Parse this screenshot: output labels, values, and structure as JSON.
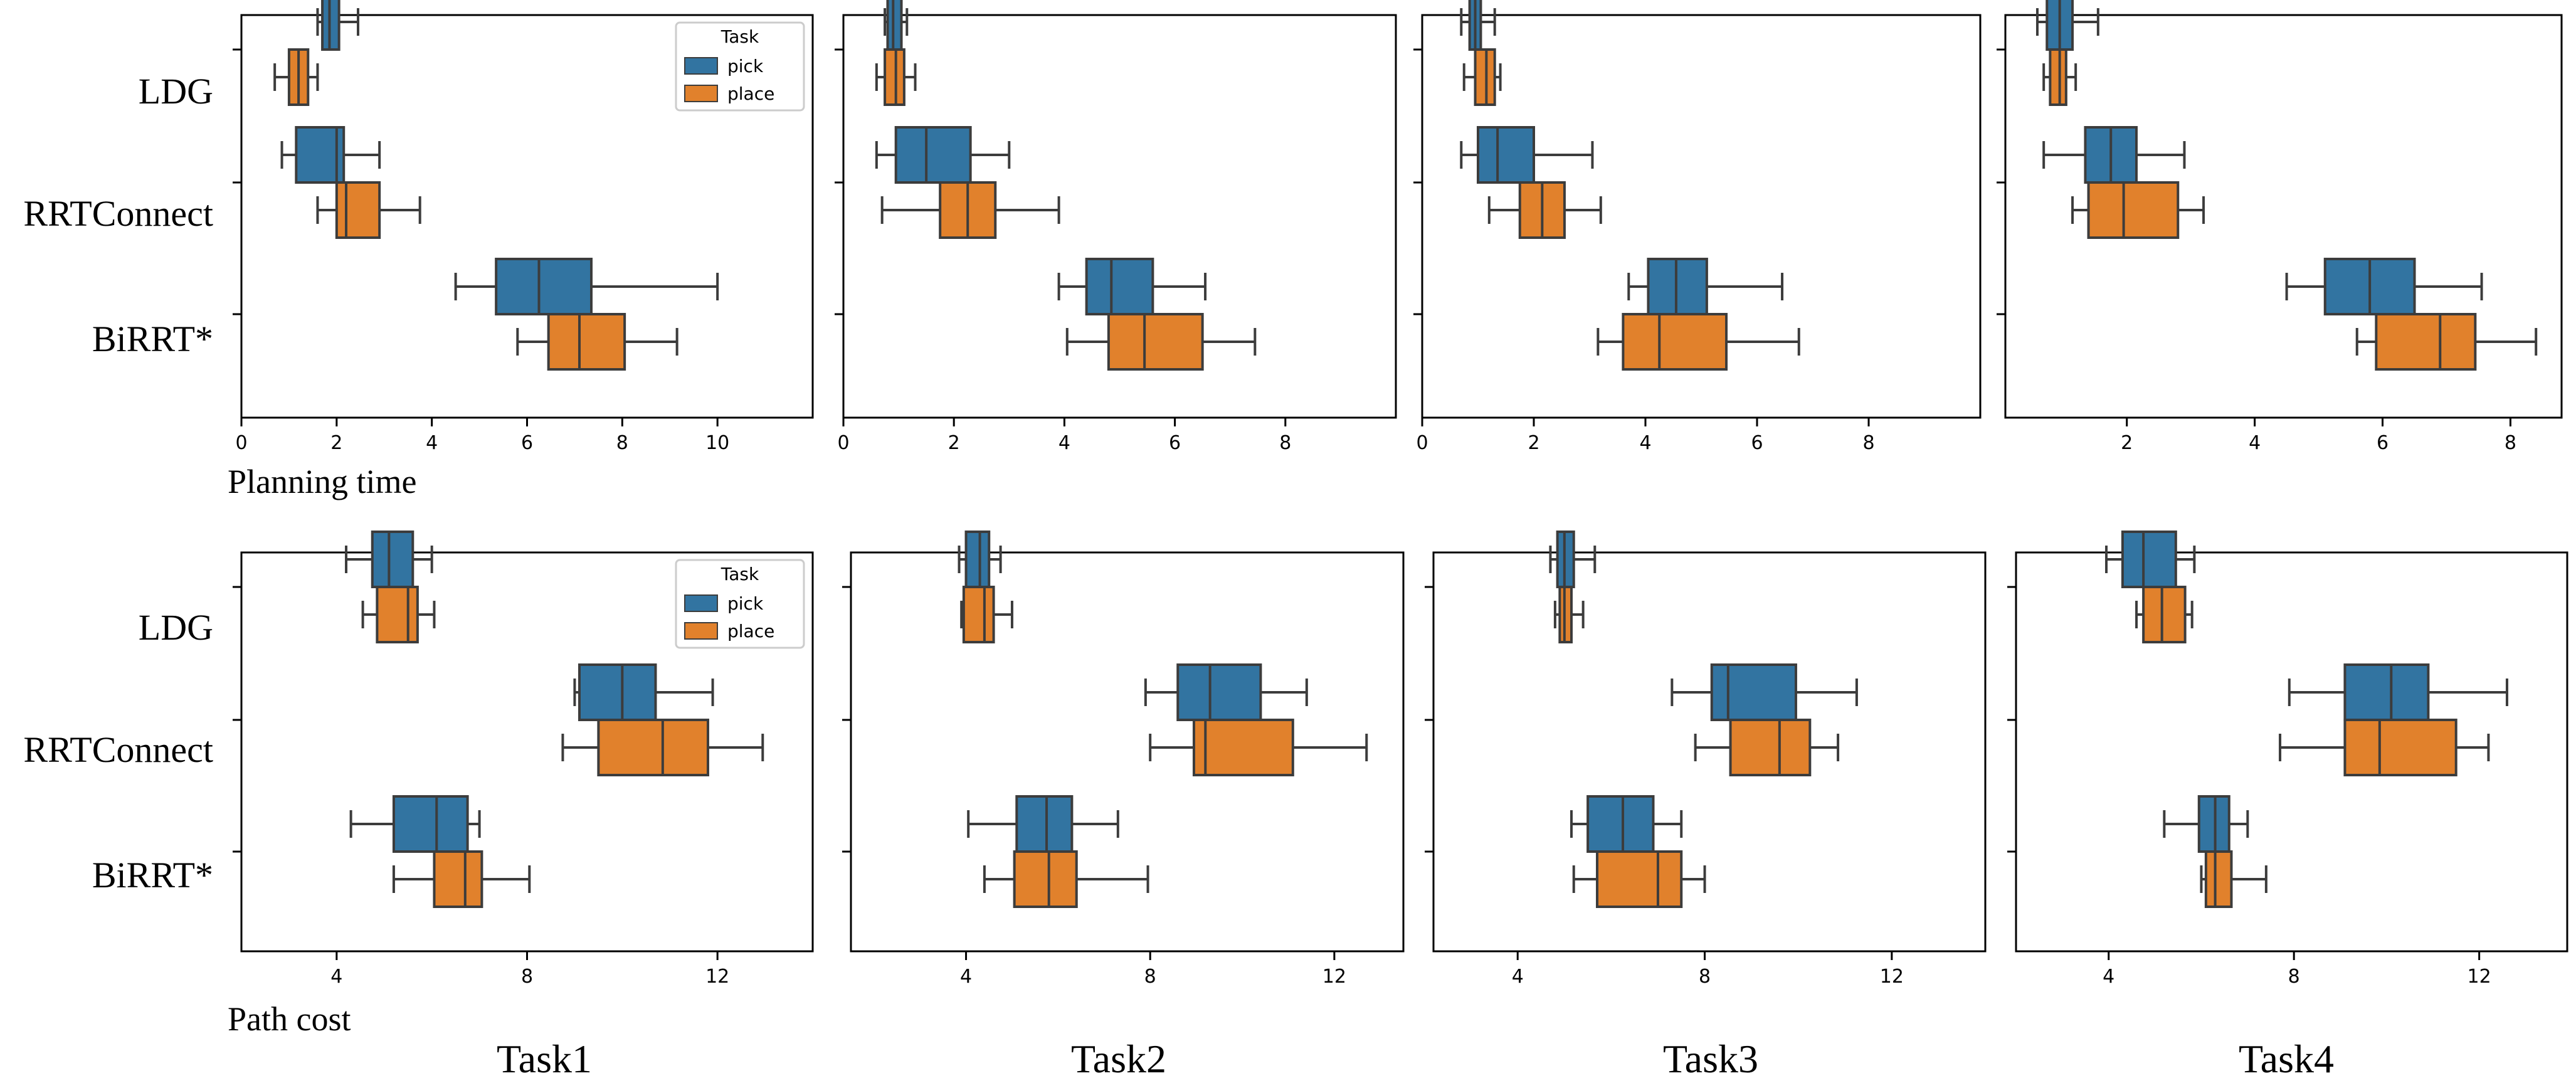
{
  "labels": {
    "methods": [
      "LDG",
      "RRTConnect",
      "BiRRT*"
    ],
    "row_titles": [
      "Planning time",
      "Path cost"
    ],
    "task_titles": [
      "Task1",
      "Task2",
      "Task3",
      "Task4"
    ],
    "legend_title": "Task",
    "legend_items": [
      "pick",
      "place"
    ]
  },
  "colors": {
    "pick": "#3274a1",
    "place": "#e1812c",
    "whisker": "#3c3c3c",
    "frame": "#000000"
  },
  "chart_data": [
    {
      "type": "boxplot",
      "row": 0,
      "task": "Task1",
      "xlim": [
        0,
        12
      ],
      "xticks": [
        0,
        2,
        4,
        6,
        8,
        10
      ],
      "legend": "top-right",
      "methods": [
        "LDG",
        "RRTConnect",
        "BiRRT*"
      ],
      "series": [
        {
          "name": "pick",
          "boxes": [
            {
              "min": 1.6,
              "q1": 1.7,
              "median": 1.85,
              "q3": 2.05,
              "max": 2.45
            },
            {
              "min": 0.85,
              "q1": 1.15,
              "median": 2.0,
              "q3": 2.15,
              "max": 2.9
            },
            {
              "min": 4.5,
              "q1": 5.35,
              "median": 6.25,
              "q3": 7.35,
              "max": 10.0
            }
          ]
        },
        {
          "name": "place",
          "boxes": [
            {
              "min": 0.7,
              "q1": 1.0,
              "median": 1.2,
              "q3": 1.4,
              "max": 1.6
            },
            {
              "min": 1.6,
              "q1": 2.0,
              "median": 2.2,
              "q3": 2.9,
              "max": 3.75
            },
            {
              "min": 5.8,
              "q1": 6.45,
              "median": 7.1,
              "q3": 8.05,
              "max": 9.15
            }
          ]
        }
      ]
    },
    {
      "type": "boxplot",
      "row": 0,
      "task": "Task2",
      "xlim": [
        0,
        10
      ],
      "xticks": [
        0,
        2,
        4,
        6,
        8
      ],
      "methods": [
        "LDG",
        "RRTConnect",
        "BiRRT*"
      ],
      "series": [
        {
          "name": "pick",
          "boxes": [
            {
              "min": 0.75,
              "q1": 0.8,
              "median": 0.9,
              "q3": 1.05,
              "max": 1.15
            },
            {
              "min": 0.6,
              "q1": 0.95,
              "median": 1.5,
              "q3": 2.3,
              "max": 3.0
            },
            {
              "min": 3.9,
              "q1": 4.4,
              "median": 4.85,
              "q3": 5.6,
              "max": 6.55
            }
          ]
        },
        {
          "name": "place",
          "boxes": [
            {
              "min": 0.6,
              "q1": 0.75,
              "median": 0.95,
              "q3": 1.1,
              "max": 1.3
            },
            {
              "min": 0.7,
              "q1": 1.75,
              "median": 2.25,
              "q3": 2.75,
              "max": 3.9
            },
            {
              "min": 4.05,
              "q1": 4.8,
              "median": 5.45,
              "q3": 6.5,
              "max": 7.45
            }
          ]
        }
      ]
    },
    {
      "type": "boxplot",
      "row": 0,
      "task": "Task3",
      "xlim": [
        0,
        10
      ],
      "xticks": [
        0,
        2,
        4,
        6,
        8
      ],
      "methods": [
        "LDG",
        "RRTConnect",
        "BiRRT*"
      ],
      "series": [
        {
          "name": "pick",
          "boxes": [
            {
              "min": 0.7,
              "q1": 0.85,
              "median": 0.95,
              "q3": 1.05,
              "max": 1.3
            },
            {
              "min": 0.7,
              "q1": 1.0,
              "median": 1.35,
              "q3": 2.0,
              "max": 3.05
            },
            {
              "min": 3.7,
              "q1": 4.05,
              "median": 4.55,
              "q3": 5.1,
              "max": 6.45
            }
          ]
        },
        {
          "name": "place",
          "boxes": [
            {
              "min": 0.75,
              "q1": 0.95,
              "median": 1.15,
              "q3": 1.3,
              "max": 1.4
            },
            {
              "min": 1.2,
              "q1": 1.75,
              "median": 2.15,
              "q3": 2.55,
              "max": 3.2
            },
            {
              "min": 3.15,
              "q1": 3.6,
              "median": 4.25,
              "q3": 5.45,
              "max": 6.75
            }
          ]
        }
      ]
    },
    {
      "type": "boxplot",
      "row": 0,
      "task": "Task4",
      "xlim": [
        0.1,
        8.8
      ],
      "xticks": [
        2,
        4,
        6,
        8
      ],
      "methods": [
        "LDG",
        "RRTConnect",
        "BiRRT*"
      ],
      "series": [
        {
          "name": "pick",
          "boxes": [
            {
              "min": 0.6,
              "q1": 0.75,
              "median": 0.95,
              "q3": 1.15,
              "max": 1.55
            },
            {
              "min": 0.7,
              "q1": 1.35,
              "median": 1.75,
              "q3": 2.15,
              "max": 2.9
            },
            {
              "min": 4.5,
              "q1": 5.1,
              "median": 5.8,
              "q3": 6.5,
              "max": 7.55
            }
          ]
        },
        {
          "name": "place",
          "boxes": [
            {
              "min": 0.7,
              "q1": 0.8,
              "median": 0.95,
              "q3": 1.05,
              "max": 1.2
            },
            {
              "min": 1.15,
              "q1": 1.4,
              "median": 1.95,
              "q3": 2.8,
              "max": 3.2
            },
            {
              "min": 5.6,
              "q1": 5.9,
              "median": 6.9,
              "q3": 7.45,
              "max": 8.4
            }
          ]
        }
      ]
    },
    {
      "type": "boxplot",
      "row": 1,
      "task": "Task1",
      "xlim": [
        2.0,
        14.0
      ],
      "xticks": [
        4,
        8,
        12
      ],
      "legend": "top-right",
      "methods": [
        "LDG",
        "RRTConnect",
        "BiRRT*"
      ],
      "series": [
        {
          "name": "pick",
          "boxes": [
            {
              "min": 4.2,
              "q1": 4.75,
              "median": 5.1,
              "q3": 5.6,
              "max": 6.0
            },
            {
              "min": 9.0,
              "q1": 9.1,
              "median": 10.0,
              "q3": 10.7,
              "max": 11.9
            },
            {
              "min": 4.3,
              "q1": 5.2,
              "median": 6.1,
              "q3": 6.75,
              "max": 7.0
            }
          ]
        },
        {
          "name": "place",
          "boxes": [
            {
              "min": 4.55,
              "q1": 4.85,
              "median": 5.5,
              "q3": 5.7,
              "max": 6.05
            },
            {
              "min": 8.75,
              "q1": 9.5,
              "median": 10.85,
              "q3": 11.8,
              "max": 12.95
            },
            {
              "min": 5.2,
              "q1": 6.05,
              "median": 6.7,
              "q3": 7.05,
              "max": 8.05
            }
          ]
        }
      ]
    },
    {
      "type": "boxplot",
      "row": 1,
      "task": "Task2",
      "xlim": [
        1.5,
        13.5
      ],
      "xticks": [
        4,
        8,
        12
      ],
      "methods": [
        "LDG",
        "RRTConnect",
        "BiRRT*"
      ],
      "series": [
        {
          "name": "pick",
          "boxes": [
            {
              "min": 3.85,
              "q1": 4.0,
              "median": 4.3,
              "q3": 4.5,
              "max": 4.75
            },
            {
              "min": 7.9,
              "q1": 8.6,
              "median": 9.3,
              "q3": 10.4,
              "max": 11.4
            },
            {
              "min": 4.05,
              "q1": 5.1,
              "median": 5.75,
              "q3": 6.3,
              "max": 7.3
            }
          ]
        },
        {
          "name": "place",
          "boxes": [
            {
              "min": 3.9,
              "q1": 3.95,
              "median": 4.4,
              "q3": 4.6,
              "max": 5.0
            },
            {
              "min": 8.0,
              "q1": 8.95,
              "median": 9.2,
              "q3": 11.1,
              "max": 12.7
            },
            {
              "min": 4.4,
              "q1": 5.05,
              "median": 5.8,
              "q3": 6.4,
              "max": 7.95
            }
          ]
        }
      ]
    },
    {
      "type": "boxplot",
      "row": 1,
      "task": "Task3",
      "xlim": [
        2.2,
        14.0
      ],
      "xticks": [
        4,
        8,
        12
      ],
      "methods": [
        "LDG",
        "RRTConnect",
        "BiRRT*"
      ],
      "series": [
        {
          "name": "pick",
          "boxes": [
            {
              "min": 4.7,
              "q1": 4.85,
              "median": 5.0,
              "q3": 5.2,
              "max": 5.65
            },
            {
              "min": 7.3,
              "q1": 8.15,
              "median": 8.5,
              "q3": 9.95,
              "max": 11.25
            },
            {
              "min": 5.15,
              "q1": 5.5,
              "median": 6.25,
              "q3": 6.9,
              "max": 7.5
            }
          ]
        },
        {
          "name": "place",
          "boxes": [
            {
              "min": 4.8,
              "q1": 4.9,
              "median": 5.0,
              "q3": 5.15,
              "max": 5.4
            },
            {
              "min": 7.8,
              "q1": 8.55,
              "median": 9.6,
              "q3": 10.25,
              "max": 10.85
            },
            {
              "min": 5.2,
              "q1": 5.7,
              "median": 7.0,
              "q3": 7.5,
              "max": 8.0
            }
          ]
        }
      ]
    },
    {
      "type": "boxplot",
      "row": 1,
      "task": "Task4",
      "xlim": [
        2.0,
        13.9
      ],
      "xticks": [
        4,
        8,
        12
      ],
      "methods": [
        "LDG",
        "RRTConnect",
        "BiRRT*"
      ],
      "series": [
        {
          "name": "pick",
          "boxes": [
            {
              "min": 3.95,
              "q1": 4.3,
              "median": 4.75,
              "q3": 5.45,
              "max": 5.85
            },
            {
              "min": 7.9,
              "q1": 9.1,
              "median": 10.1,
              "q3": 10.9,
              "max": 12.6
            },
            {
              "min": 5.2,
              "q1": 5.95,
              "median": 6.3,
              "q3": 6.6,
              "max": 7.0
            }
          ]
        },
        {
          "name": "place",
          "boxes": [
            {
              "min": 4.6,
              "q1": 4.75,
              "median": 5.15,
              "q3": 5.65,
              "max": 5.8
            },
            {
              "min": 7.7,
              "q1": 9.1,
              "median": 9.85,
              "q3": 11.5,
              "max": 12.2
            },
            {
              "min": 6.0,
              "q1": 6.1,
              "median": 6.3,
              "q3": 6.65,
              "max": 7.4
            }
          ]
        }
      ]
    }
  ]
}
